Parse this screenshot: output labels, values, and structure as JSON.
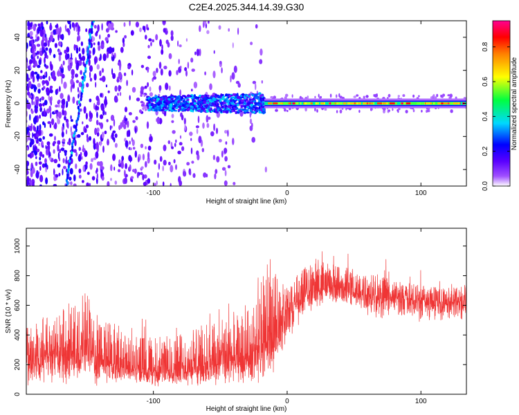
{
  "figure": {
    "title": "C2E4.2025.344.14.39.G30"
  },
  "chart_data": [
    {
      "type": "heatmap",
      "title": "C2E4.2025.344.14.39.G30",
      "xlabel": "Height of straight line (km)",
      "ylabel": "Frequency (Hz)",
      "xlim": [
        -195,
        134
      ],
      "ylim": [
        -50,
        50
      ],
      "x_ticks": [
        -100,
        0,
        100
      ],
      "x_tick_labels": [
        "-100",
        "0",
        "100"
      ],
      "y_ticks": [
        -40,
        -20,
        0,
        20,
        40
      ],
      "y_tick_labels": [
        "-40",
        "-20",
        "0",
        "20",
        "40"
      ],
      "colorbar": {
        "label": "Normalized spectral amplitude",
        "range": [
          0,
          0.95
        ],
        "ticks": [
          0.0,
          0.2,
          0.4,
          0.6,
          0.8
        ],
        "tick_labels": [
          "0.0",
          "0.2",
          "0.4",
          "0.6",
          "0.8"
        ],
        "colormap": [
          "#ffffff",
          "#8000ff",
          "#0000ff",
          "#00ffff",
          "#00ff00",
          "#ffff00",
          "#ff8000",
          "#ff0000",
          "#ff00a0"
        ]
      },
      "features": {
        "signal_line_frequency_hz": 0,
        "noise_region_x_range": [
          -195,
          -15
        ],
        "wandering_track_x": [
          -165,
          -145
        ]
      }
    },
    {
      "type": "line",
      "xlabel": "Height of straight line (km)",
      "ylabel": "SNR (10 * v/v)",
      "xlim": [
        -195,
        134
      ],
      "ylim": [
        0,
        1120
      ],
      "x_ticks": [
        -100,
        0,
        100
      ],
      "x_tick_labels": [
        "-100",
        "0",
        "100"
      ],
      "y_ticks": [
        0,
        200,
        400,
        600,
        800,
        1000
      ],
      "y_tick_labels": [
        "0",
        "200",
        "400",
        "600",
        "800",
        "1000"
      ],
      "color": "#ef3535",
      "envelope": {
        "x": [
          -195,
          -170,
          -160,
          -150,
          -140,
          -120,
          -100,
          -80,
          -60,
          -40,
          -25,
          -15,
          -10,
          0,
          10,
          20,
          30,
          40,
          50,
          60,
          80,
          100,
          120,
          134
        ],
        "upper": [
          480,
          560,
          640,
          700,
          560,
          420,
          380,
          420,
          480,
          520,
          600,
          900,
          850,
          700,
          840,
          890,
          900,
          880,
          860,
          820,
          780,
          740,
          720,
          740
        ],
        "lower": [
          30,
          60,
          60,
          80,
          50,
          60,
          40,
          40,
          40,
          40,
          40,
          60,
          130,
          330,
          480,
          560,
          620,
          600,
          560,
          520,
          500,
          480,
          480,
          480
        ],
        "mean": [
          240,
          260,
          280,
          300,
          240,
          170,
          150,
          170,
          190,
          220,
          260,
          340,
          420,
          560,
          650,
          690,
          720,
          720,
          690,
          670,
          650,
          630,
          620,
          630
        ]
      }
    }
  ]
}
